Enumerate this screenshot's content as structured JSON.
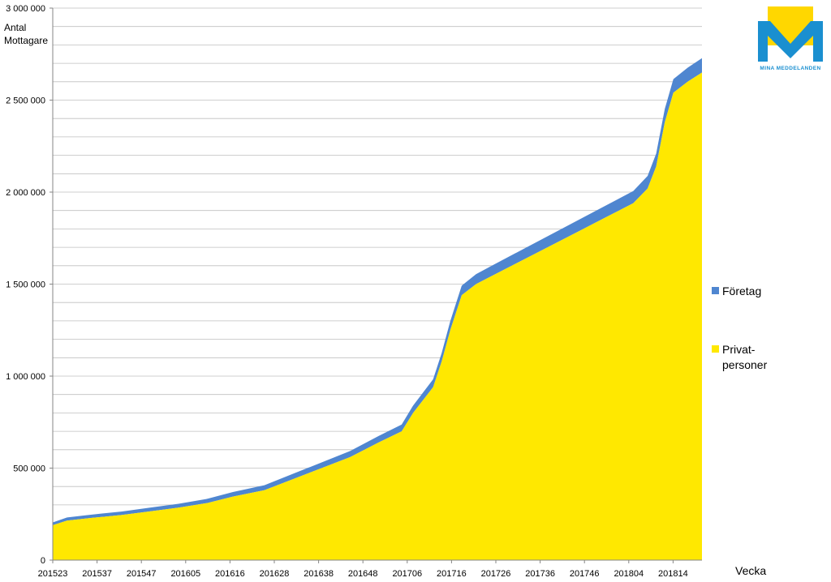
{
  "chart_data": {
    "type": "area",
    "stacked": true,
    "ylabel_lines": [
      "Antal",
      "Mottagare"
    ],
    "xlabel": "Vecka",
    "ylim": [
      0,
      3000000
    ],
    "y_ticks": [
      {
        "value": 0,
        "label": "0"
      },
      {
        "value": 500000,
        "label": "500 000"
      },
      {
        "value": 1000000,
        "label": "1 000 000"
      },
      {
        "value": 1500000,
        "label": "1 500 000"
      },
      {
        "value": 2000000,
        "label": "2 000 000"
      },
      {
        "value": 2500000,
        "label": "2 500 000"
      },
      {
        "value": 3000000,
        "label": "3 000 000"
      }
    ],
    "minor_grid_step": 100000,
    "x_ticks": [
      "201523",
      "201537",
      "201547",
      "201605",
      "201616",
      "201628",
      "201638",
      "201648",
      "201706",
      "201716",
      "201726",
      "201736",
      "201746",
      "201804",
      "201814"
    ],
    "legend_placement": "right",
    "legend": [
      {
        "key": "foretag",
        "label_lines": [
          "Företag"
        ]
      },
      {
        "key": "privat",
        "label_lines": [
          "Privat-",
          "personer"
        ]
      }
    ],
    "x_index": [
      0,
      5,
      14,
      24,
      34,
      44,
      54,
      63,
      74,
      84,
      94,
      104,
      114,
      122,
      126,
      133,
      136,
      139,
      143,
      148,
      153,
      163,
      173,
      183,
      193,
      203,
      208,
      211,
      214,
      217,
      222,
      227
    ],
    "series": [
      {
        "key": "privat",
        "name": "Privatpersoner",
        "color": "#FFE800",
        "values": [
          190000,
          215000,
          230000,
          245000,
          265000,
          285000,
          310000,
          345000,
          380000,
          440000,
          500000,
          560000,
          640000,
          700000,
          800000,
          940000,
          1080000,
          1250000,
          1440000,
          1500000,
          1540000,
          1620000,
          1700000,
          1780000,
          1860000,
          1940000,
          2020000,
          2140000,
          2380000,
          2540000,
          2600000,
          2650000
        ]
      },
      {
        "key": "foretag",
        "name": "Företag",
        "color": "#4F86D0",
        "values": [
          15000,
          17000,
          18000,
          19000,
          20000,
          21000,
          23000,
          25000,
          27000,
          29000,
          31000,
          33000,
          35000,
          37000,
          40000,
          43000,
          46000,
          49000,
          52000,
          54000,
          56000,
          58000,
          60000,
          62000,
          64000,
          66000,
          68000,
          70000,
          72000,
          74000,
          76000,
          78000
        ]
      }
    ],
    "colors": {
      "privat": "#FFE800",
      "foretag": "#4F86D0",
      "grid": "#BFBFBF",
      "axis": "#868686"
    }
  },
  "logo": {
    "text": "MINA MEDDELANDEN",
    "colors": {
      "sun": "#FFD700",
      "letter": "#1A8FD0"
    }
  }
}
